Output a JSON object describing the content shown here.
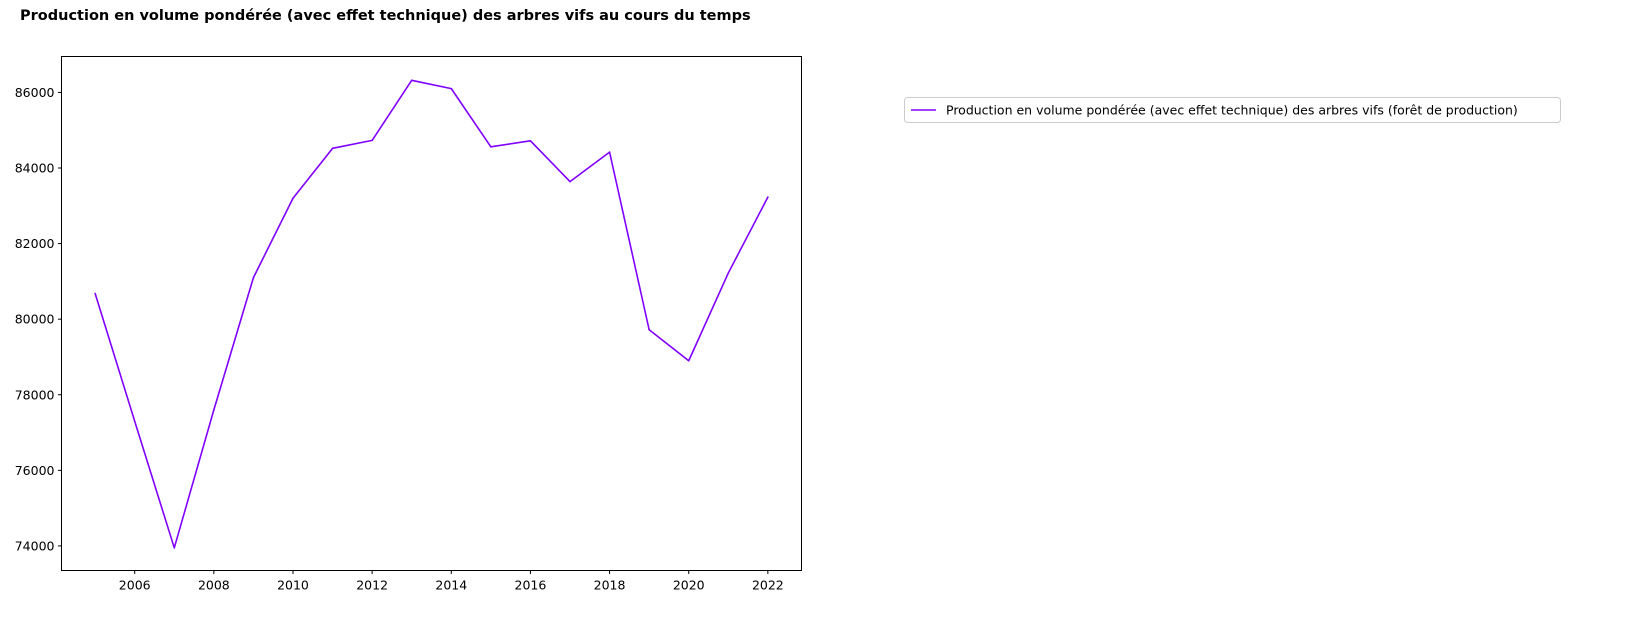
{
  "chart_data": {
    "type": "line",
    "title": "Production en volume pondérée (avec effet technique) des arbres vifs au cours du temps",
    "xlabel": "",
    "ylabel": "",
    "x": [
      2005,
      2006,
      2007,
      2008,
      2009,
      2010,
      2011,
      2012,
      2013,
      2014,
      2015,
      2016,
      2017,
      2018,
      2019,
      2020,
      2021,
      2022
    ],
    "series": [
      {
        "name": "Production en volume pondérée (avec effet technique) des arbres vifs (forêt de production)",
        "color": "#8000ff",
        "values": [
          80680,
          77300,
          73950,
          77600,
          81100,
          83200,
          84520,
          84730,
          86320,
          86100,
          84560,
          84720,
          83640,
          84420,
          79720,
          78900,
          81220,
          83230
        ]
      }
    ],
    "xlim": [
      2004.15,
      2022.85
    ],
    "ylim": [
      73350,
      86950
    ],
    "xticks": [
      2006,
      2008,
      2010,
      2012,
      2014,
      2016,
      2018,
      2020,
      2022
    ],
    "yticks": [
      74000,
      76000,
      78000,
      80000,
      82000,
      84000,
      86000
    ],
    "grid": false,
    "legend_position": "outside-right-top"
  }
}
